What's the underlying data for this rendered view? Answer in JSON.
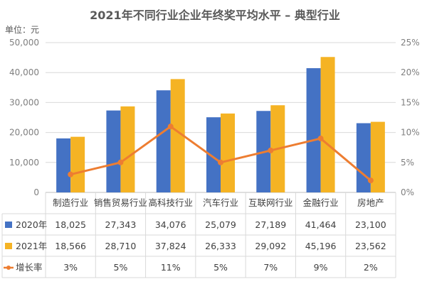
{
  "chart_data": {
    "type": "bar",
    "title": "2021年不同行业企业年终奖平均水平 – 典型行业",
    "unit_label": "单位：元",
    "categories": [
      "制造行业",
      "销售贸易行业",
      "高科技行业",
      "汽车行业",
      "互联网行业",
      "金融行业",
      "房地产"
    ],
    "left_axis": {
      "min": 0,
      "max": 50000,
      "ticks": [
        "0",
        "10,000",
        "20,000",
        "30,000",
        "40,000",
        "50,000"
      ]
    },
    "right_axis": {
      "min": 0,
      "max": 25,
      "ticks": [
        "0%",
        "5%",
        "10%",
        "15%",
        "20%",
        "25%"
      ]
    },
    "series": [
      {
        "name": "2020年",
        "type": "bar",
        "color": "#4472C4",
        "values": [
          18025,
          27343,
          34076,
          25079,
          27189,
          41464,
          23100
        ],
        "labels": [
          "18,025",
          "27,343",
          "34,076",
          "25,079",
          "27,189",
          "41,464",
          "23,100"
        ]
      },
      {
        "name": "2021年",
        "type": "bar",
        "color": "#F5B324",
        "values": [
          18566,
          28710,
          37824,
          26333,
          29092,
          45196,
          23562
        ],
        "labels": [
          "18,566",
          "28,710",
          "37,824",
          "26,333",
          "29,092",
          "45,196",
          "23,562"
        ]
      },
      {
        "name": "增长率",
        "type": "line",
        "axis": "right",
        "color": "#ED7D31",
        "values": [
          3,
          5,
          11,
          5,
          7,
          9,
          2
        ],
        "labels": [
          "3%",
          "5%",
          "11%",
          "5%",
          "7%",
          "9%",
          "2%"
        ]
      }
    ],
    "grid": true,
    "legend": "table-bottom"
  }
}
